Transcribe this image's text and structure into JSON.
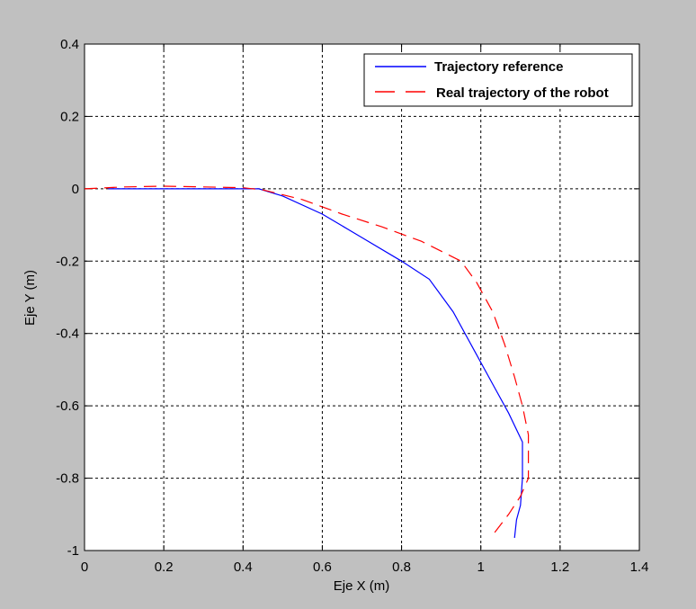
{
  "chart_data": {
    "type": "line",
    "title": "",
    "xlabel": "Eje X (m)",
    "ylabel": "Eje Y (m)",
    "xlim": [
      0,
      1.4
    ],
    "ylim": [
      -1,
      0.4
    ],
    "x_ticks": [
      "0",
      "0.2",
      "0.4",
      "0.6",
      "0.8",
      "1",
      "1.2",
      "1.4"
    ],
    "y_ticks": [
      "0.4",
      "0.2",
      "0",
      "-0.2",
      "-0.4",
      "-0.6",
      "-0.8",
      "-1"
    ],
    "grid": true,
    "legend_position": "top-right",
    "series": [
      {
        "name": "Trajectory reference",
        "color": "#0000ff",
        "dash": "solid",
        "points": [
          [
            0.06,
            0.0
          ],
          [
            0.3,
            0.0
          ],
          [
            0.44,
            0.0
          ],
          [
            0.5,
            -0.02
          ],
          [
            0.6,
            -0.07
          ],
          [
            0.7,
            -0.135
          ],
          [
            0.8,
            -0.2
          ],
          [
            0.87,
            -0.25
          ],
          [
            0.93,
            -0.34
          ],
          [
            0.98,
            -0.44
          ],
          [
            1.03,
            -0.54
          ],
          [
            1.07,
            -0.62
          ],
          [
            1.105,
            -0.7
          ],
          [
            1.105,
            -0.8
          ],
          [
            1.1,
            -0.875
          ],
          [
            1.09,
            -0.915
          ],
          [
            1.085,
            -0.965
          ]
        ]
      },
      {
        "name": "Real trajectory of the robot",
        "color": "#ff0000",
        "dash": "dashed",
        "points": [
          [
            0.0,
            0.0
          ],
          [
            0.1,
            0.005
          ],
          [
            0.2,
            0.007
          ],
          [
            0.3,
            0.005
          ],
          [
            0.4,
            0.003
          ],
          [
            0.45,
            -0.003
          ],
          [
            0.55,
            -0.03
          ],
          [
            0.65,
            -0.07
          ],
          [
            0.75,
            -0.105
          ],
          [
            0.85,
            -0.145
          ],
          [
            0.95,
            -0.2
          ],
          [
            0.99,
            -0.26
          ],
          [
            1.03,
            -0.34
          ],
          [
            1.06,
            -0.43
          ],
          [
            1.085,
            -0.52
          ],
          [
            1.105,
            -0.6
          ],
          [
            1.12,
            -0.68
          ],
          [
            1.12,
            -0.8
          ],
          [
            1.1,
            -0.85
          ],
          [
            1.07,
            -0.9
          ],
          [
            1.035,
            -0.95
          ]
        ]
      }
    ]
  }
}
